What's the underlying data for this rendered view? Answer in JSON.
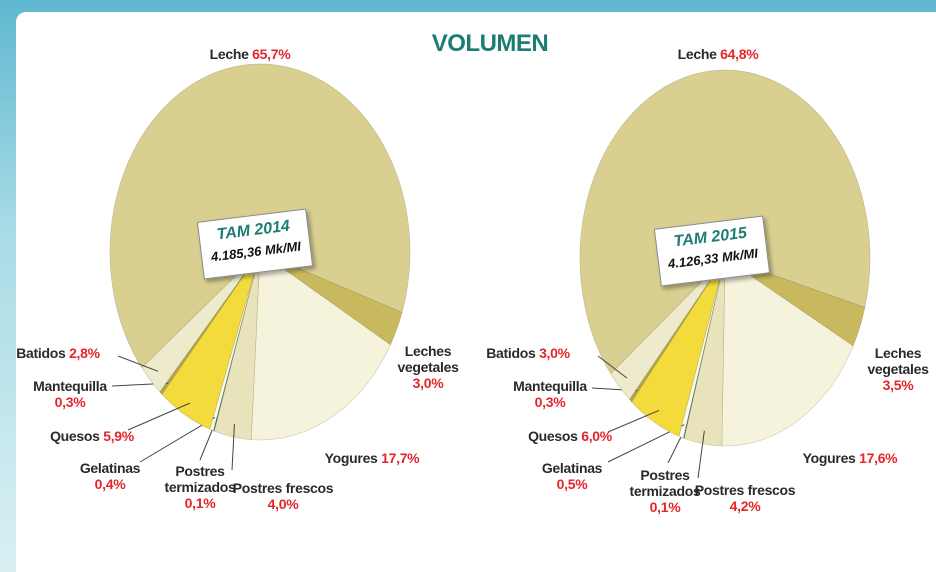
{
  "title": "VOLUMEN",
  "chart_data": [
    {
      "type": "pie",
      "center_title": "TAM 2014",
      "center_value": "4.185,36 Mk/MI",
      "categories": [
        "Leche",
        "Leches vegetales",
        "Yogures",
        "Postres frescos",
        "Postres termizados",
        "Gelatinas",
        "Quesos",
        "Mantequilla",
        "Batidos"
      ],
      "values": [
        65.7,
        3.0,
        17.7,
        4.0,
        0.1,
        0.4,
        5.9,
        0.3,
        2.8
      ],
      "value_labels": [
        "65,7%",
        "3,0%",
        "17,7%",
        "4,0%",
        "0,1%",
        "0,4%",
        "5,9%",
        "0,3%",
        "2,8%"
      ],
      "colors": [
        "#d9cf90",
        "#c8b85e",
        "#f6f3dd",
        "#e9e3bb",
        "#1f7a6e",
        "#fbfaf0",
        "#f2db3a",
        "#b5a548",
        "#eeebcc"
      ]
    },
    {
      "type": "pie",
      "center_title": "TAM 2015",
      "center_value": "4.126,33 Mk/MI",
      "categories": [
        "Leche",
        "Leches vegetales",
        "Yogures",
        "Postres frescos",
        "Postres termizados",
        "Gelatinas",
        "Quesos",
        "Mantequilla",
        "Batidos"
      ],
      "values": [
        64.8,
        3.5,
        17.6,
        4.2,
        0.1,
        0.5,
        6.0,
        0.3,
        3.0
      ],
      "value_labels": [
        "64,8%",
        "3,5%",
        "17,6%",
        "4,2%",
        "0,1%",
        "0,5%",
        "6,0%",
        "0,3%",
        "3,0%"
      ],
      "colors": [
        "#d9cf90",
        "#c8b85e",
        "#f6f3dd",
        "#e9e3bb",
        "#1f7a6e",
        "#fbfaf0",
        "#f2db3a",
        "#b5a548",
        "#eeebcc"
      ]
    }
  ]
}
